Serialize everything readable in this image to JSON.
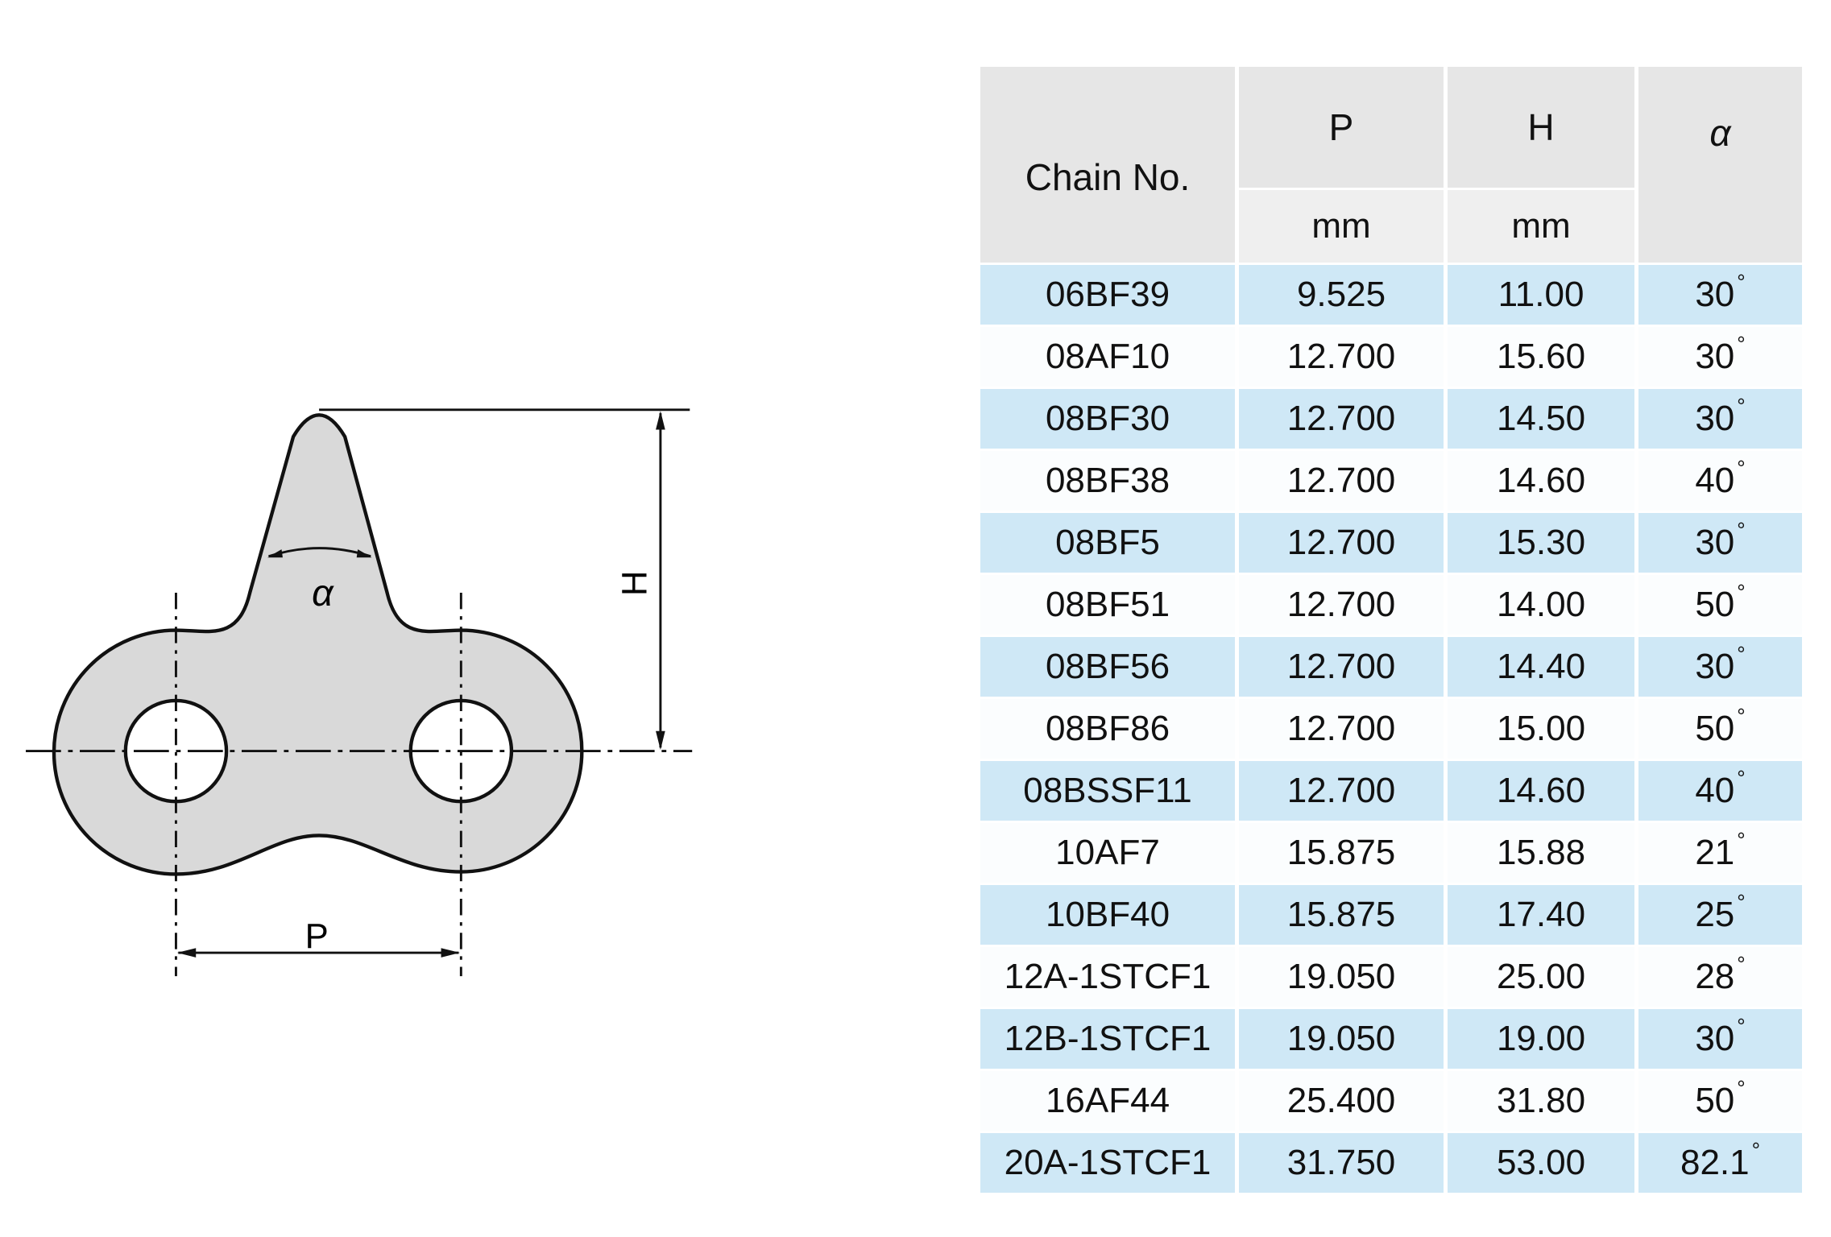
{
  "diagram": {
    "labels": {
      "pitch": "P",
      "height": "H",
      "angle": "α"
    },
    "colors": {
      "part_fill": "#d9d9d9",
      "outline": "#111111"
    }
  },
  "table": {
    "headers": {
      "chain_no": "Chain No.",
      "p": "P",
      "p_unit": "mm",
      "h": "H",
      "h_unit": "mm",
      "alpha": "α"
    },
    "degree_symbol": "°",
    "colors": {
      "stripe": "#cfe8f6",
      "header": "#e6e6e6"
    },
    "rows": [
      {
        "chain": "06BF39",
        "p": "9.525",
        "h": "11.00",
        "alpha": "30"
      },
      {
        "chain": "08AF10",
        "p": "12.700",
        "h": "15.60",
        "alpha": "30"
      },
      {
        "chain": "08BF30",
        "p": "12.700",
        "h": "14.50",
        "alpha": "30"
      },
      {
        "chain": "08BF38",
        "p": "12.700",
        "h": "14.60",
        "alpha": "40"
      },
      {
        "chain": "08BF5",
        "p": "12.700",
        "h": "15.30",
        "alpha": "30"
      },
      {
        "chain": "08BF51",
        "p": "12.700",
        "h": "14.00",
        "alpha": "50"
      },
      {
        "chain": "08BF56",
        "p": "12.700",
        "h": "14.40",
        "alpha": "30"
      },
      {
        "chain": "08BF86",
        "p": "12.700",
        "h": "15.00",
        "alpha": "50"
      },
      {
        "chain": "08BSSF11",
        "p": "12.700",
        "h": "14.60",
        "alpha": "40"
      },
      {
        "chain": "10AF7",
        "p": "15.875",
        "h": "15.88",
        "alpha": "21"
      },
      {
        "chain": "10BF40",
        "p": "15.875",
        "h": "17.40",
        "alpha": "25"
      },
      {
        "chain": "12A-1STCF1",
        "p": "19.050",
        "h": "25.00",
        "alpha": "28"
      },
      {
        "chain": "12B-1STCF1",
        "p": "19.050",
        "h": "19.00",
        "alpha": "30"
      },
      {
        "chain": "16AF44",
        "p": "25.400",
        "h": "31.80",
        "alpha": "50"
      },
      {
        "chain": "20A-1STCF1",
        "p": "31.750",
        "h": "53.00",
        "alpha": "82.1"
      }
    ]
  }
}
